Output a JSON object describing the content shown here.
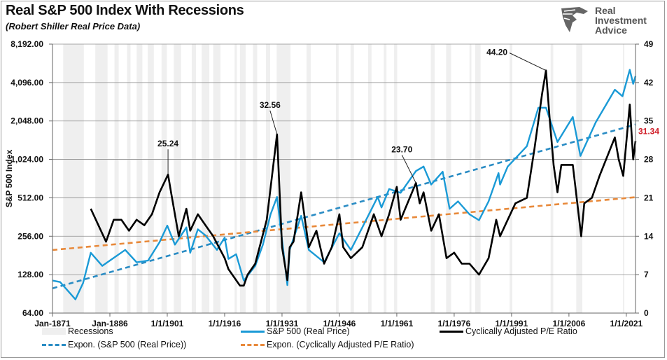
{
  "title": "Real S&P 500 Index With Recessions",
  "subtitle": "(Robert Shiller Real Price Data)",
  "logo": {
    "text_lines": [
      "Real",
      "Investment",
      "Advice"
    ],
    "icon": "eagle-head-icon"
  },
  "colors": {
    "sp500": "#1a9ad6",
    "cape": "#000000",
    "sp500_trend": "#2a8cc4",
    "cape_trend": "#e8893a",
    "recession": "#efefef",
    "current_label": "#d0202a",
    "grid": "#8c8c8c"
  },
  "chart_data": {
    "type": "line",
    "title": "Real S&P 500 Index With Recessions",
    "subtitle": "(Robert Shiller Real Price Data)",
    "xlabel": "",
    "ylabel": "S&P 500 Index",
    "xlim": [
      1871,
      2023.4
    ],
    "ylim": [
      64,
      8192
    ],
    "yscale": "log2",
    "y2lim": [
      0,
      49
    ],
    "grid": "horizontal",
    "legend_position": "bottom",
    "x_tick_labels": [
      "Jan-1871",
      "Jan-1886",
      "1/1/1901",
      "1/1/1916",
      "1/1/1931",
      "1/1/1946",
      "1/1/1961",
      "1/1/1976",
      "1/1/1991",
      "1/1/2006",
      "1/1/2021"
    ],
    "x_tick_years": [
      1871,
      1886,
      1901,
      1916,
      1931,
      1946,
      1961,
      1976,
      1991,
      2006,
      2021
    ],
    "y_tick_labels": [
      "64.00",
      "128.00",
      "256.00",
      "512.00",
      "1,024.00",
      "2,048.00",
      "4,096.00",
      "8,192.00"
    ],
    "y_ticks": [
      64,
      128,
      256,
      512,
      1024,
      2048,
      4096,
      8192
    ],
    "y2_ticks": [
      0,
      7,
      14,
      21,
      28,
      35,
      42,
      49
    ],
    "recessions": [
      [
        1873.8,
        1879.2
      ],
      [
        1882.2,
        1885.4
      ],
      [
        1887.2,
        1888.3
      ],
      [
        1890.5,
        1891.4
      ],
      [
        1893.0,
        1894.5
      ],
      [
        1895.9,
        1897.5
      ],
      [
        1899.5,
        1900.9
      ],
      [
        1902.7,
        1904.6
      ],
      [
        1907.4,
        1908.5
      ],
      [
        1910.0,
        1912.0
      ],
      [
        1913.0,
        1914.9
      ],
      [
        1918.6,
        1919.2
      ],
      [
        1920.0,
        1921.5
      ],
      [
        1923.4,
        1924.5
      ],
      [
        1926.8,
        1927.9
      ],
      [
        1929.6,
        1933.2
      ],
      [
        1937.4,
        1938.5
      ],
      [
        1945.1,
        1945.8
      ],
      [
        1948.9,
        1949.8
      ],
      [
        1953.5,
        1954.4
      ],
      [
        1957.6,
        1958.3
      ],
      [
        1960.3,
        1961.1
      ],
      [
        1969.9,
        1970.9
      ],
      [
        1973.9,
        1975.2
      ],
      [
        1980.0,
        1980.5
      ],
      [
        1981.5,
        1982.9
      ],
      [
        1990.5,
        1991.2
      ],
      [
        2001.2,
        2001.9
      ],
      [
        2007.9,
        2009.5
      ],
      [
        2020.1,
        2020.3
      ]
    ],
    "series": [
      {
        "name": "S&P 500 (Real Price)",
        "axis": "left",
        "style": "solid",
        "x": [
          1871,
          1873,
          1877,
          1879,
          1881,
          1884,
          1886,
          1890,
          1893,
          1896,
          1899,
          1901,
          1903,
          1906,
          1907,
          1909,
          1911,
          1914,
          1916,
          1917,
          1919,
          1921,
          1924,
          1926,
          1928,
          1929.7,
          1932.4,
          1933,
          1936,
          1938,
          1942,
          1946,
          1949,
          1952,
          1956,
          1957,
          1959,
          1962,
          1966,
          1968,
          1970,
          1973,
          1974.8,
          1977,
          1980,
          1982.5,
          1985,
          1987.6,
          1988,
          1990,
          1995,
          1998,
          2000,
          2003,
          2007,
          2009,
          2013,
          2018,
          2020,
          2021.9,
          2022.8,
          2023.4
        ],
        "values": [
          115,
          112,
          82,
          110,
          190,
          150,
          165,
          200,
          160,
          165,
          230,
          310,
          220,
          300,
          190,
          290,
          260,
          200,
          250,
          170,
          185,
          115,
          150,
          220,
          380,
          520,
          106,
          200,
          370,
          200,
          160,
          270,
          200,
          300,
          520,
          430,
          600,
          560,
          830,
          900,
          650,
          820,
          420,
          480,
          380,
          342,
          480,
          800,
          650,
          900,
          1300,
          2600,
          2600,
          1400,
          2200,
          1090,
          2000,
          3600,
          3200,
          5150,
          4000,
          4600
        ]
      },
      {
        "name": "Cyclically Adjusted P/E Ratio",
        "axis": "right",
        "style": "solid",
        "x": [
          1881,
          1883,
          1885,
          1887,
          1889,
          1891,
          1893,
          1895,
          1897,
          1899,
          1901.2,
          1902,
          1904,
          1906,
          1907,
          1909,
          1911,
          1913,
          1916,
          1917,
          1920,
          1921,
          1922,
          1924,
          1927,
          1929.7,
          1931,
          1932.4,
          1933,
          1934,
          1936,
          1938,
          1940,
          1942,
          1944,
          1946,
          1947,
          1949,
          1952,
          1955,
          1957,
          1959,
          1961,
          1962,
          1966,
          1967,
          1968,
          1970,
          1972,
          1974,
          1976,
          1978,
          1980,
          1982.5,
          1985,
          1987,
          1988,
          1990,
          1992,
          1995,
          1997,
          1999,
          2000,
          2001,
          2002,
          2003,
          2004,
          2007,
          2009.2,
          2010,
          2012,
          2014,
          2018,
          2019,
          2020.2,
          2021.9,
          2022.8,
          2023.4
        ],
        "values": [
          19,
          16,
          13,
          17,
          17,
          15,
          17,
          16,
          18,
          22,
          25.24,
          22,
          14,
          19,
          15,
          18,
          16,
          14,
          10,
          8,
          5,
          5,
          7,
          9,
          17,
          32.56,
          12,
          6,
          12,
          13,
          22,
          12,
          15,
          9,
          12,
          18,
          12,
          10,
          12,
          18,
          14,
          18,
          23,
          17,
          23.7,
          20,
          22,
          15,
          18,
          10,
          11,
          9,
          9,
          7,
          10,
          17,
          14,
          17,
          20,
          21,
          30,
          40,
          44.2,
          35,
          27,
          22,
          27,
          27,
          14,
          20,
          21,
          25,
          32,
          28,
          25,
          38,
          28,
          31.34
        ]
      },
      {
        "name": "Expon. (S&P 500 (Real Price))",
        "axis": "left",
        "style": "dashed",
        "x": [
          1871,
          2023.4
        ],
        "values": [
          100,
          1920
        ]
      },
      {
        "name": "Expon. (Cyclically Adjusted P/E Ratio)",
        "axis": "right",
        "style": "dashed",
        "x": [
          1871,
          2023.4
        ],
        "values": [
          11.5,
          21.1
        ]
      }
    ],
    "annotations": [
      {
        "text": "25.24",
        "x": 1901.2,
        "value": 25.24
      },
      {
        "text": "32.56",
        "x": 1929.7,
        "value": 32.56
      },
      {
        "text": "23.70",
        "x": 1966,
        "value": 23.7
      },
      {
        "text": "44.20",
        "x": 2000,
        "value": 44.2
      }
    ],
    "current_value_label": "31.34",
    "current_value": 31.34,
    "legend": [
      "Recessions",
      "S&P 500 (Real Price)",
      "Cyclically Adjusted P/E Ratio",
      "Expon. (S&P 500 (Real Price))",
      "Expon. (Cyclically Adjusted P/E Ratio)"
    ]
  }
}
